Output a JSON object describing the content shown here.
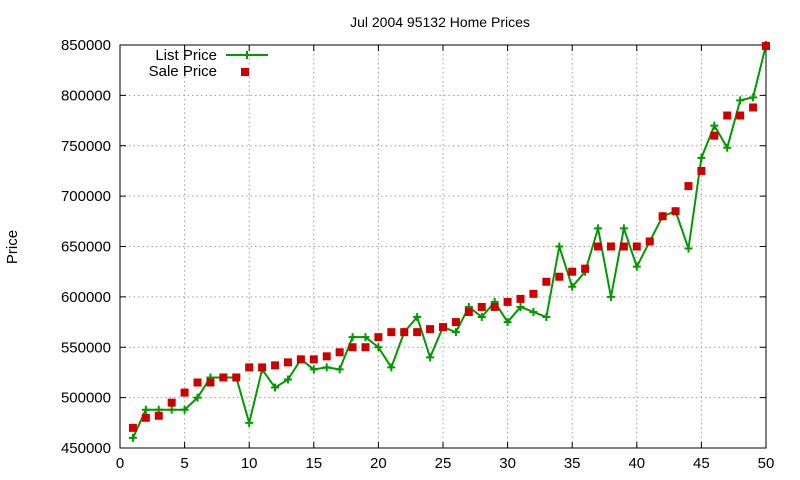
{
  "chart_data": {
    "type": "line",
    "title": "Jul 2004 95132 Home Prices",
    "xlabel": "",
    "ylabel": "Price",
    "xlim": [
      0,
      50
    ],
    "ylim": [
      450000,
      850000
    ],
    "xticks": [
      0,
      5,
      10,
      15,
      20,
      25,
      30,
      35,
      40,
      45,
      50
    ],
    "yticks": [
      450000,
      500000,
      550000,
      600000,
      650000,
      700000,
      750000,
      800000,
      850000
    ],
    "grid": true,
    "legend_position": "top-left",
    "colors": {
      "list": "#009900",
      "sale": "#cc0000"
    },
    "series": [
      {
        "name": "List Price",
        "style": "line-plus",
        "x": [
          1,
          2,
          3,
          4,
          5,
          6,
          7,
          8,
          9,
          10,
          11,
          12,
          13,
          14,
          15,
          16,
          17,
          18,
          19,
          20,
          21,
          22,
          23,
          24,
          25,
          26,
          27,
          28,
          29,
          30,
          31,
          32,
          33,
          34,
          35,
          36,
          37,
          38,
          39,
          40,
          41,
          42,
          43,
          44,
          45,
          46,
          47,
          48,
          49,
          50
        ],
        "y": [
          460000,
          488000,
          488000,
          488000,
          488000,
          500000,
          520000,
          520000,
          520000,
          475000,
          528000,
          510000,
          518000,
          538000,
          528000,
          530000,
          528000,
          560000,
          560000,
          550000,
          530000,
          565000,
          580000,
          540000,
          570000,
          565000,
          590000,
          580000,
          595000,
          575000,
          590000,
          585000,
          580000,
          650000,
          610000,
          625000,
          668000,
          600000,
          668000,
          630000,
          655000,
          680000,
          685000,
          648000,
          738000,
          770000,
          748000,
          795000,
          798000,
          850000
        ]
      },
      {
        "name": "Sale Price",
        "style": "square",
        "x": [
          1,
          2,
          3,
          4,
          5,
          6,
          7,
          8,
          9,
          10,
          11,
          12,
          13,
          14,
          15,
          16,
          17,
          18,
          19,
          20,
          21,
          22,
          23,
          24,
          25,
          26,
          27,
          28,
          29,
          30,
          31,
          32,
          33,
          34,
          35,
          36,
          37,
          38,
          39,
          40,
          41,
          42,
          43,
          44,
          45,
          46,
          47,
          48,
          49,
          50
        ],
        "y": [
          470000,
          480000,
          482000,
          495000,
          505000,
          515000,
          515000,
          520000,
          520000,
          530000,
          530000,
          532000,
          535000,
          538000,
          538000,
          541000,
          545000,
          550000,
          550000,
          560000,
          565000,
          565000,
          565000,
          568000,
          570000,
          575000,
          585000,
          590000,
          590000,
          595000,
          598000,
          603000,
          615000,
          620000,
          625000,
          628000,
          650000,
          650000,
          650000,
          650000,
          655000,
          680000,
          685000,
          710000,
          725000,
          760000,
          780000,
          780000,
          788000,
          849000
        ]
      }
    ]
  }
}
